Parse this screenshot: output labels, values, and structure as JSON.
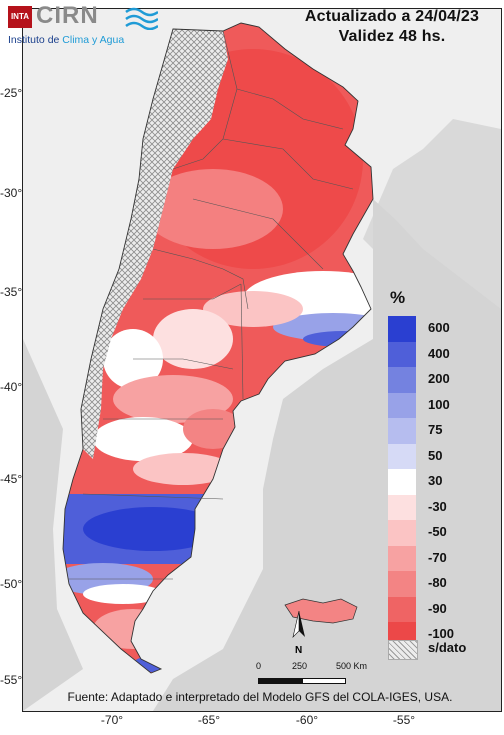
{
  "logo": {
    "inta": "INTA",
    "cirn": "CIRN",
    "institute_prefix": "Instituto de ",
    "institute_highlight": "Clima y Agua"
  },
  "header": {
    "updated": "Actualizado a 24/04/23",
    "validity": "Validez 48 hs."
  },
  "axes": {
    "lat_ticks": [
      "-25°",
      "-30°",
      "-35°",
      "-40°",
      "-45°",
      "-50°",
      "-55°"
    ],
    "lon_ticks": [
      "-70°",
      "-65°",
      "-60°",
      "-55°"
    ]
  },
  "legend": {
    "title": "%",
    "items": [
      {
        "label": "600",
        "color": "#2a3fd1"
      },
      {
        "label": "400",
        "color": "#4f5fd9"
      },
      {
        "label": "200",
        "color": "#7482e0"
      },
      {
        "label": "100",
        "color": "#98a2e8"
      },
      {
        "label": "75",
        "color": "#b6bdef"
      },
      {
        "label": "50",
        "color": "#d6daf6"
      },
      {
        "label": "30",
        "color": "#ffffff"
      },
      {
        "label": "-30",
        "color": "#fde0e0"
      },
      {
        "label": "-50",
        "color": "#fbc4c4"
      },
      {
        "label": "-70",
        "color": "#f7a2a2"
      },
      {
        "label": "-80",
        "color": "#f38484"
      },
      {
        "label": "-90",
        "color": "#ef6464"
      },
      {
        "label": "-100",
        "color": "#ec4848"
      }
    ],
    "no_data_label": "s/dato"
  },
  "scale": {
    "labels": [
      "0",
      "250",
      "500 Km"
    ],
    "north": "N"
  },
  "source": "Fuente: Adaptado e interpretado del Modelo GFS del COLA-IGES, USA."
}
